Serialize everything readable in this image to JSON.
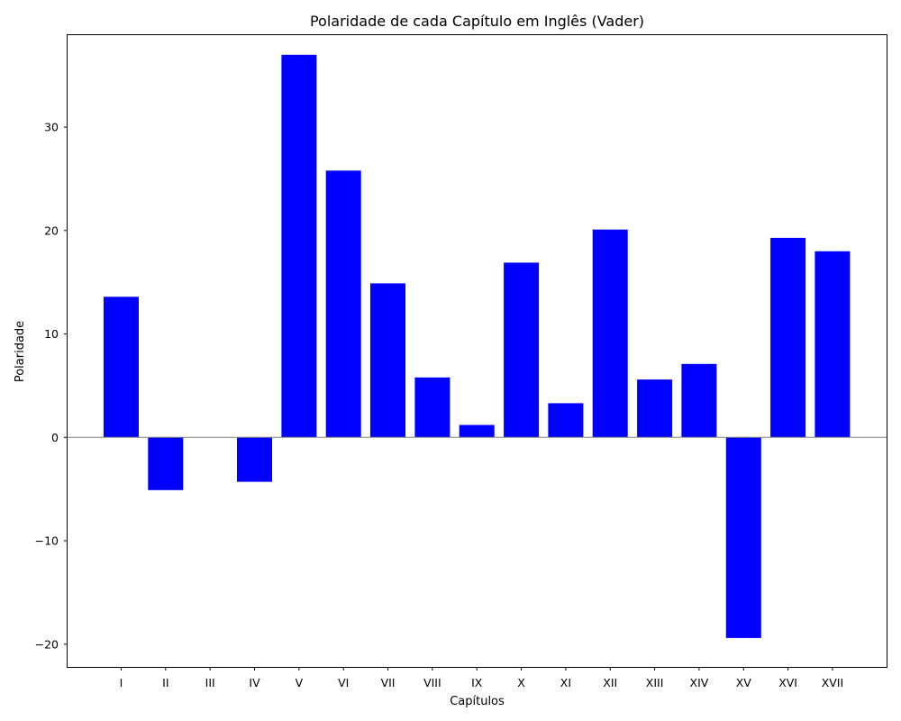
{
  "chart_data": {
    "type": "bar",
    "title": "Polaridade de cada Capítulo em Inglês (Vader)",
    "xlabel": "Capítulos",
    "ylabel": "Polaridade",
    "categories": [
      "I",
      "II",
      "III",
      "IV",
      "V",
      "VI",
      "VII",
      "VIII",
      "IX",
      "X",
      "XI",
      "XII",
      "XIII",
      "XIV",
      "XV",
      "XVI",
      "XVII"
    ],
    "values": [
      13.6,
      -5.1,
      0.0,
      -4.3,
      37.0,
      25.8,
      14.9,
      5.8,
      1.2,
      16.9,
      3.3,
      20.1,
      5.6,
      7.1,
      -19.4,
      19.3,
      18.0
    ],
    "ylim": [
      -22.2,
      38.9
    ],
    "yticks": [
      -20,
      -10,
      0,
      10,
      20,
      30
    ],
    "ytick_labels": [
      "−20",
      "−10",
      "0",
      "10",
      "20",
      "30"
    ],
    "bar_color": "#0000ff",
    "zero_line_color": "#808080",
    "grid": false,
    "legend": false
  }
}
